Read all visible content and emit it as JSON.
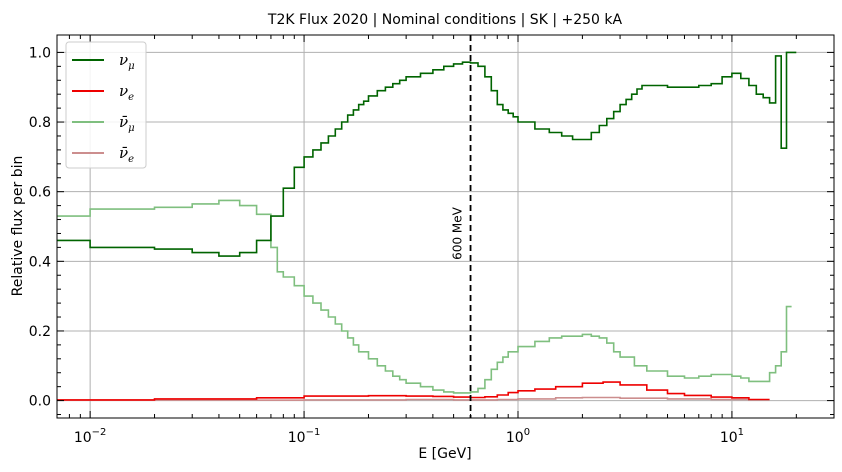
{
  "chart_data": {
    "type": "line",
    "title": "T2K Flux 2020 | Nominal conditions | SK | +250 kA",
    "xlabel": "E [GeV]",
    "ylabel": "Relative flux per bin",
    "xscale": "log",
    "xlim": [
      0.007,
      30
    ],
    "ylim": [
      -0.05,
      1.05
    ],
    "grid": true,
    "legend_position": "top-left",
    "x_ticks": [
      "10^-2",
      "10^-1",
      "10^0",
      "10^1"
    ],
    "x_tick_values": [
      0.01,
      0.1,
      1,
      10
    ],
    "y_ticks": [
      "0.0",
      "0.2",
      "0.4",
      "0.6",
      "0.8",
      "1.0"
    ],
    "y_tick_values": [
      0.0,
      0.2,
      0.4,
      0.6,
      0.8,
      1.0
    ],
    "vline": {
      "x": 0.6,
      "label": "600 MeV"
    },
    "series": [
      {
        "name": "ν_μ",
        "color": "#006400",
        "edges": [
          0.007,
          0.01,
          0.02,
          0.03,
          0.04,
          0.05,
          0.06,
          0.07,
          0.08,
          0.09,
          0.1,
          0.11,
          0.12,
          0.13,
          0.14,
          0.15,
          0.16,
          0.17,
          0.18,
          0.19,
          0.2,
          0.22,
          0.24,
          0.26,
          0.28,
          0.3,
          0.35,
          0.4,
          0.45,
          0.5,
          0.55,
          0.6,
          0.65,
          0.7,
          0.75,
          0.8,
          0.85,
          0.9,
          0.95,
          1.0,
          1.2,
          1.4,
          1.6,
          1.8,
          2.0,
          2.2,
          2.4,
          2.6,
          2.8,
          3.0,
          3.2,
          3.4,
          3.6,
          3.8,
          4.0,
          5,
          6,
          7,
          8,
          9,
          10,
          11,
          12,
          13,
          14,
          15,
          16,
          17,
          18,
          19,
          20
        ],
        "values": [
          0.46,
          0.44,
          0.435,
          0.425,
          0.415,
          0.425,
          0.46,
          0.53,
          0.61,
          0.67,
          0.7,
          0.72,
          0.74,
          0.76,
          0.78,
          0.8,
          0.82,
          0.835,
          0.85,
          0.86,
          0.875,
          0.89,
          0.9,
          0.91,
          0.92,
          0.93,
          0.94,
          0.95,
          0.96,
          0.967,
          0.972,
          0.97,
          0.96,
          0.93,
          0.89,
          0.85,
          0.835,
          0.825,
          0.815,
          0.8,
          0.78,
          0.77,
          0.76,
          0.75,
          0.75,
          0.77,
          0.79,
          0.81,
          0.83,
          0.85,
          0.865,
          0.88,
          0.895,
          0.905,
          0.905,
          0.9,
          0.9,
          0.905,
          0.91,
          0.93,
          0.94,
          0.925,
          0.905,
          0.88,
          0.87,
          0.855,
          0.99,
          0.725,
          1.0,
          1.0
        ]
      },
      {
        "name": "ν_e",
        "color": "#ee0000",
        "edges": [
          0.007,
          0.02,
          0.06,
          0.1,
          0.2,
          0.3,
          0.4,
          0.5,
          0.6,
          0.7,
          0.8,
          0.9,
          1.0,
          1.2,
          1.5,
          2.0,
          2.5,
          3.0,
          4.0,
          5.0,
          6.0,
          8.0,
          10.0,
          12.0,
          15.0
        ],
        "values": [
          0.002,
          0.005,
          0.008,
          0.013,
          0.014,
          0.013,
          0.012,
          0.01,
          0.009,
          0.011,
          0.016,
          0.023,
          0.028,
          0.033,
          0.04,
          0.05,
          0.053,
          0.045,
          0.03,
          0.02,
          0.015,
          0.01,
          0.008,
          0.003
        ]
      },
      {
        "name": "ν̄_μ",
        "color": "#7fbf7f",
        "edges": [
          0.007,
          0.01,
          0.02,
          0.03,
          0.04,
          0.05,
          0.06,
          0.07,
          0.075,
          0.08,
          0.09,
          0.1,
          0.11,
          0.12,
          0.13,
          0.14,
          0.15,
          0.16,
          0.17,
          0.18,
          0.2,
          0.22,
          0.24,
          0.26,
          0.28,
          0.3,
          0.35,
          0.4,
          0.45,
          0.5,
          0.6,
          0.65,
          0.7,
          0.75,
          0.8,
          0.85,
          0.9,
          1.0,
          1.2,
          1.4,
          1.6,
          2.0,
          2.2,
          2.4,
          2.6,
          2.8,
          3.0,
          3.5,
          4.0,
          5,
          6,
          7,
          8,
          9,
          10,
          11,
          12,
          14,
          15,
          16,
          17,
          18,
          19
        ],
        "values": [
          0.53,
          0.55,
          0.555,
          0.565,
          0.575,
          0.56,
          0.535,
          0.44,
          0.37,
          0.355,
          0.33,
          0.3,
          0.28,
          0.26,
          0.24,
          0.22,
          0.2,
          0.18,
          0.16,
          0.14,
          0.12,
          0.1,
          0.085,
          0.07,
          0.06,
          0.05,
          0.04,
          0.03,
          0.025,
          0.022,
          0.025,
          0.035,
          0.06,
          0.09,
          0.11,
          0.125,
          0.14,
          0.155,
          0.17,
          0.18,
          0.185,
          0.19,
          0.185,
          0.18,
          0.165,
          0.14,
          0.125,
          0.1,
          0.085,
          0.07,
          0.065,
          0.07,
          0.075,
          0.075,
          0.07,
          0.065,
          0.055,
          0.055,
          0.08,
          0.1,
          0.14,
          0.27
        ]
      },
      {
        "name": "ν̄_e",
        "color": "#cc8e8e",
        "edges": [
          0.007,
          0.1,
          0.3,
          0.5,
          0.8,
          1.0,
          1.5,
          2.0,
          3.0,
          5.0,
          8.0,
          12.0
        ],
        "values": [
          0.001,
          0.002,
          0.003,
          0.002,
          0.003,
          0.005,
          0.008,
          0.009,
          0.007,
          0.005,
          0.003
        ]
      }
    ]
  }
}
